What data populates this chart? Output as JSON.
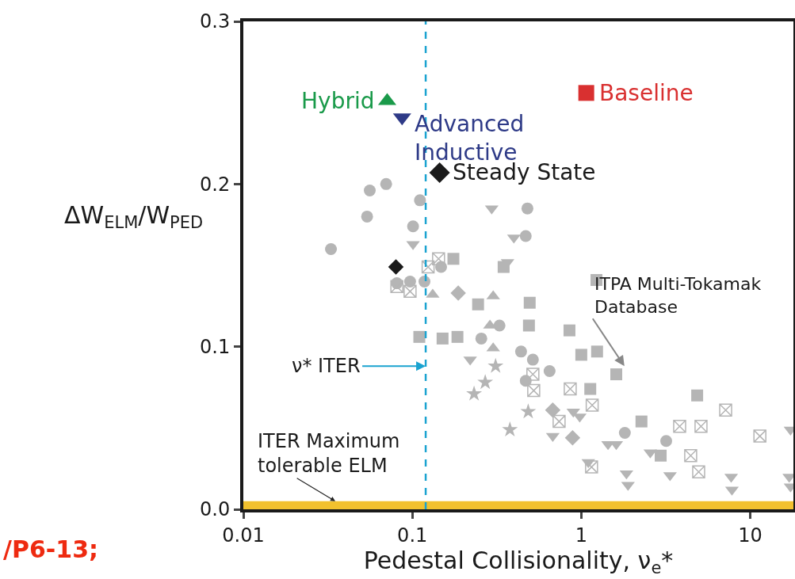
{
  "chart_data": {
    "type": "scatter",
    "xlabel": "Pedestal Collisionality, ν$_{e}$*",
    "ylabel": "ΔW$_{ELM}$/W$_{PED}$",
    "log": "x",
    "grid": false,
    "legend": false,
    "xlim": [
      0.01,
      18
    ],
    "xticks": [
      0.01,
      0.1,
      1,
      10
    ],
    "ylim": [
      0,
      0.3
    ],
    "yticks": [
      {
        "value": 0,
        "label": "0.0"
      },
      0.1,
      0.2,
      0.3
    ],
    "ref_lines": [
      {
        "axis": "x",
        "value": 0.12,
        "label": "ν* ITER",
        "color": "#1ba3d0",
        "line_style": "dashed"
      }
    ],
    "bands": [
      {
        "axis": "y",
        "from": 0,
        "to": 0.005,
        "label": "ITER Maximum tolerable ELM",
        "color": "#f2c12e"
      }
    ],
    "annotations": [
      {
        "text": "ITPA Multi-Tokamak Database",
        "x": 1.8,
        "y": 0.088
      },
      "/P6-13;"
    ],
    "series": [
      {
        "color": "#b5b5b5",
        "marker": "circle",
        "x": [
          0.056,
          0.07,
          0.111,
          0.054,
          0.101,
          0.033,
          0.081,
          0.097,
          0.118,
          0.148,
          0.328,
          0.256,
          0.48,
          0.469,
          0.44,
          0.517,
          0.649,
          0.469,
          1.81,
          3.18
        ],
        "values": [
          0.196,
          0.2,
          0.19,
          0.18,
          0.174,
          0.16,
          0.139,
          0.14,
          0.14,
          0.149,
          0.113,
          0.105,
          0.185,
          0.168,
          0.097,
          0.092,
          0.085,
          0.079,
          0.047,
          0.042
        ]
      },
      {
        "color": "#b5b5b5",
        "marker": "triangle-down",
        "x": [
          0.101,
          0.295,
          0.399,
          0.366,
          0.22,
          0.897,
          0.979,
          0.678,
          1.44,
          1.61,
          2.56,
          1.1,
          1.85,
          1.89,
          3.35,
          7.71,
          7.79,
          17.3,
          17.0,
          17.3
        ],
        "values": [
          0.163,
          0.185,
          0.167,
          0.152,
          0.092,
          0.06,
          0.057,
          0.045,
          0.04,
          0.04,
          0.035,
          0.029,
          0.022,
          0.015,
          0.021,
          0.02,
          0.012,
          0.049,
          0.02,
          0.014
        ]
      },
      {
        "color": "#b5b5b5",
        "marker": "triangle",
        "x": [
          0.132,
          0.301,
          0.288,
          0.301
        ],
        "values": [
          0.132,
          0.131,
          0.113,
          0.099
        ]
      },
      {
        "color": "#b5b5b5",
        "marker": "diamond",
        "x": [
          0.187,
          0.678,
          0.888
        ],
        "values": [
          0.133,
          0.061,
          0.044
        ]
      },
      {
        "color": "#b5b5b5",
        "marker": "square",
        "x": [
          0.347,
          0.245,
          0.175,
          0.11,
          0.151,
          0.185,
          1.23,
          0.495,
          0.49,
          0.851,
          1.0,
          1.24,
          1.61,
          1.13,
          4.85,
          2.27,
          2.95
        ],
        "values": [
          0.149,
          0.126,
          0.154,
          0.106,
          0.105,
          0.106,
          0.141,
          0.127,
          0.113,
          0.11,
          0.095,
          0.097,
          0.083,
          0.074,
          0.07,
          0.054,
          0.033
        ]
      },
      {
        "color": "#b5b5b5",
        "marker": "cross",
        "x": [
          0.143,
          0.124,
          0.097,
          0.081,
          0.517,
          0.523,
          0.86,
          1.16,
          7.15,
          3.82,
          5.11,
          11.4,
          4.44,
          4.95,
          0.739,
          1.15
        ],
        "values": [
          0.154,
          0.149,
          0.134,
          0.137,
          0.083,
          0.073,
          0.074,
          0.064,
          0.061,
          0.051,
          0.051,
          0.045,
          0.033,
          0.023,
          0.054,
          0.026
        ]
      },
      {
        "color": "#b5b5b5",
        "marker": "star",
        "x": [
          0.311,
          0.27,
          0.232,
          0.378,
          0.485
        ],
        "values": [
          0.088,
          0.078,
          0.071,
          0.049,
          0.06
        ]
      },
      {
        "color": "#1a1a1a",
        "marker": "diamond",
        "x": [
          0.08
        ],
        "values": [
          0.149
        ]
      },
      {
        "name": "Hybrid",
        "color": "#1a9a4a",
        "marker": "triangle",
        "x": [
          0.071
        ],
        "values": [
          0.251
        ]
      },
      {
        "name": "Advanced Inductive",
        "color": "#2e3a87",
        "marker": "triangle-down",
        "x": [
          0.087
        ],
        "values": [
          0.241
        ]
      },
      {
        "name": "Steady State",
        "color": "#1a1a1a",
        "marker": "diamond",
        "x": [
          0.145
        ],
        "values": [
          0.207
        ]
      },
      {
        "name": "Baseline",
        "color": "#d93030",
        "marker": "square",
        "x": [
          1.07
        ],
        "values": [
          0.256
        ]
      }
    ]
  }
}
